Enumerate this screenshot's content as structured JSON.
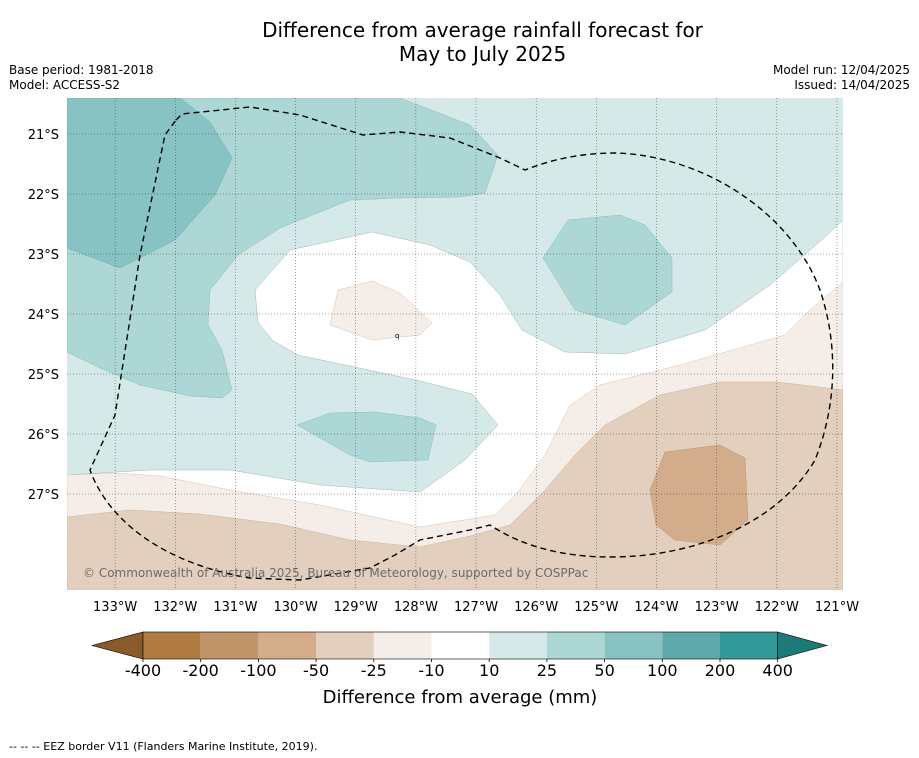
{
  "title_line1": "Difference from average rainfall forecast for",
  "title_line2": "May to July 2025",
  "base_period": "Base period: 1981-2018",
  "model": "Model: ACCESS-S2",
  "model_run": "Model run: 12/04/2025",
  "issued": "Issued: 14/04/2025",
  "copyright": "© Commonwealth of Australia 2025, Bureau of Meteorology, supported by COSPPac",
  "map": {
    "lon_labels": [
      "133°W",
      "132°W",
      "131°W",
      "130°W",
      "129°W",
      "128°W",
      "127°W",
      "126°W",
      "125°W",
      "124°W",
      "123°W",
      "122°W",
      "121°W"
    ],
    "lat_labels": [
      "21°S",
      "22°S",
      "23°S",
      "24°S",
      "25°S",
      "26°S",
      "27°S"
    ],
    "lon_range": [
      -133.8,
      -120.9
    ],
    "lat_range": [
      -20.4,
      -28.6
    ],
    "border_label": "EEZ border"
  },
  "colorbar": {
    "title": "Difference from average (mm)",
    "tick_labels": [
      "-400",
      "-200",
      "-100",
      "-50",
      "-25",
      "-10",
      "10",
      "25",
      "50",
      "100",
      "200",
      "400"
    ],
    "colors": [
      "#8a5a2b",
      "#b07b43",
      "#c29469",
      "#d3ad8b",
      "#e3cfbd",
      "#f4ede8",
      "#ffffff",
      "#d5eae8",
      "#acd7d5",
      "#87c3c2",
      "#5eaaaa",
      "#339998",
      "#1e7a78"
    ]
  },
  "footer": "--  --  -- EEZ border V11 (Flanders Marine Institute, 2019)."
}
